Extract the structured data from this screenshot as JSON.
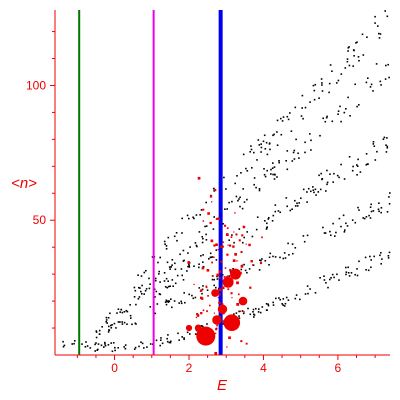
{
  "chart_data": {
    "type": "scatter",
    "xlabel": "E",
    "ylabel": "<n>",
    "xlim": [
      -1.6,
      7.4
    ],
    "ylim": [
      0,
      128
    ],
    "x_ticks": [
      0,
      2,
      4,
      6
    ],
    "y_ticks": [
      50,
      100
    ],
    "grid": false,
    "vertical_lines": [
      {
        "x": -0.95,
        "color": "#007700"
      },
      {
        "x": 1.05,
        "color": "#ee00ee"
      },
      {
        "x": 2.85,
        "color": "#0000ee"
      }
    ],
    "series": [
      {
        "color": "#000000",
        "marker": "dot",
        "bands": [
          {
            "x": [
              -1.6,
              -0.5,
              0.5,
              1.5,
              2.5,
              3.5,
              4.5,
              5.5,
              6.5,
              7.4
            ],
            "y": [
              5,
              3,
              3,
              6,
              10,
              15,
              20,
              26,
              32,
              38
            ]
          },
          {
            "x": [
              -0.5,
              0.5,
              1.5,
              2.5,
              3.5,
              4.5,
              5.5,
              6.5,
              7.4
            ],
            "y": [
              8,
              13,
              19,
              25,
              32,
              38,
              45,
              51,
              57
            ]
          },
          {
            "x": [
              -0.3,
              0.5,
              1.5,
              2.5,
              3.5,
              4.5,
              5.5,
              6.5,
              7.4
            ],
            "y": [
              12,
              19,
              27,
              36,
              45,
              54,
              63,
              71,
              79
            ]
          },
          {
            "x": [
              0.0,
              1.0,
              2.0,
              3.0,
              4.0,
              5.0,
              6.0,
              7.0,
              7.4
            ],
            "y": [
              15,
              27,
              39,
              52,
              65,
              77,
              90,
              102,
              107
            ]
          },
          {
            "x": [
              0.5,
              1.5,
              2.5,
              3.5,
              4.5,
              5.5,
              6.5,
              7.4
            ],
            "y": [
              25,
              43,
              58,
              71,
              84,
              98,
              112,
              126
            ]
          }
        ]
      },
      {
        "color": "#ee0000",
        "marker": "circle",
        "points": [
          {
            "x": 2.45,
            "y": 7,
            "size": 1.0
          },
          {
            "x": 3.15,
            "y": 12,
            "size": 0.85
          },
          {
            "x": 2.75,
            "y": 13,
            "size": 0.4
          },
          {
            "x": 2.25,
            "y": 10,
            "size": 0.25
          },
          {
            "x": 2.9,
            "y": 17,
            "size": 0.4
          },
          {
            "x": 3.05,
            "y": 27,
            "size": 0.5
          },
          {
            "x": 3.25,
            "y": 30,
            "size": 0.5
          },
          {
            "x": 3.45,
            "y": 20,
            "size": 0.35
          },
          {
            "x": 2.7,
            "y": 23,
            "size": 0.3
          },
          {
            "x": 2.0,
            "y": 10,
            "size": 0.2
          }
        ],
        "cluster": {
          "center_x": 3.0,
          "center_y": 30,
          "count": 110,
          "x_min": 1.9,
          "x_max": 3.9,
          "y_min": 9,
          "y_max": 62
        }
      }
    ]
  }
}
